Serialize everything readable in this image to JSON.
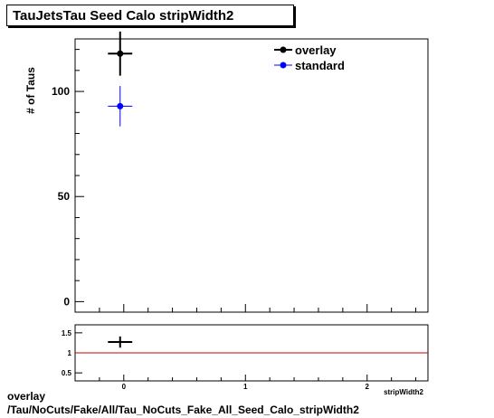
{
  "title": "TauJetsTau Seed Calo stripWidth2",
  "footer": {
    "line1": "overlay",
    "line2": "/Tau/NoCuts/Fake/All/Tau_NoCuts_Fake_All_Seed_Calo_stripWidth2"
  },
  "colors": {
    "overlay": "#000000",
    "standard": "#0000ff",
    "ratio_line": "#cc0000"
  },
  "chart_data": [
    {
      "type": "scatter",
      "title": "TauJetsTau Seed Calo stripWidth2",
      "xlabel": "stripWidth2",
      "ylabel": "# of Taus",
      "xlim": [
        -0.4,
        2.5
      ],
      "ylim": [
        -5,
        125
      ],
      "x_ticks": [
        "0",
        "1",
        "2"
      ],
      "y_ticks": [
        "0",
        "50",
        "100"
      ],
      "legend_position": "top-right",
      "series": [
        {
          "name": "overlay",
          "x": [
            -0.03
          ],
          "y": [
            118
          ],
          "yerr": [
            10.5
          ],
          "xerr": [
            0.1
          ]
        },
        {
          "name": "standard",
          "x": [
            -0.03
          ],
          "y": [
            93
          ],
          "yerr": [
            9.6
          ],
          "xerr": [
            0.1
          ]
        }
      ]
    },
    {
      "type": "scatter",
      "xlim": [
        -0.4,
        2.5
      ],
      "ylim": [
        0.3,
        1.7
      ],
      "y_ticks": [
        "0.5",
        "1",
        "1.5"
      ],
      "x_ticks": [
        "0",
        "1",
        "2"
      ],
      "reference_line": 1,
      "series": [
        {
          "x": [
            -0.03
          ],
          "y": [
            1.27
          ],
          "yerr": [
            0.14
          ],
          "xerr": [
            0.1
          ]
        }
      ]
    }
  ]
}
